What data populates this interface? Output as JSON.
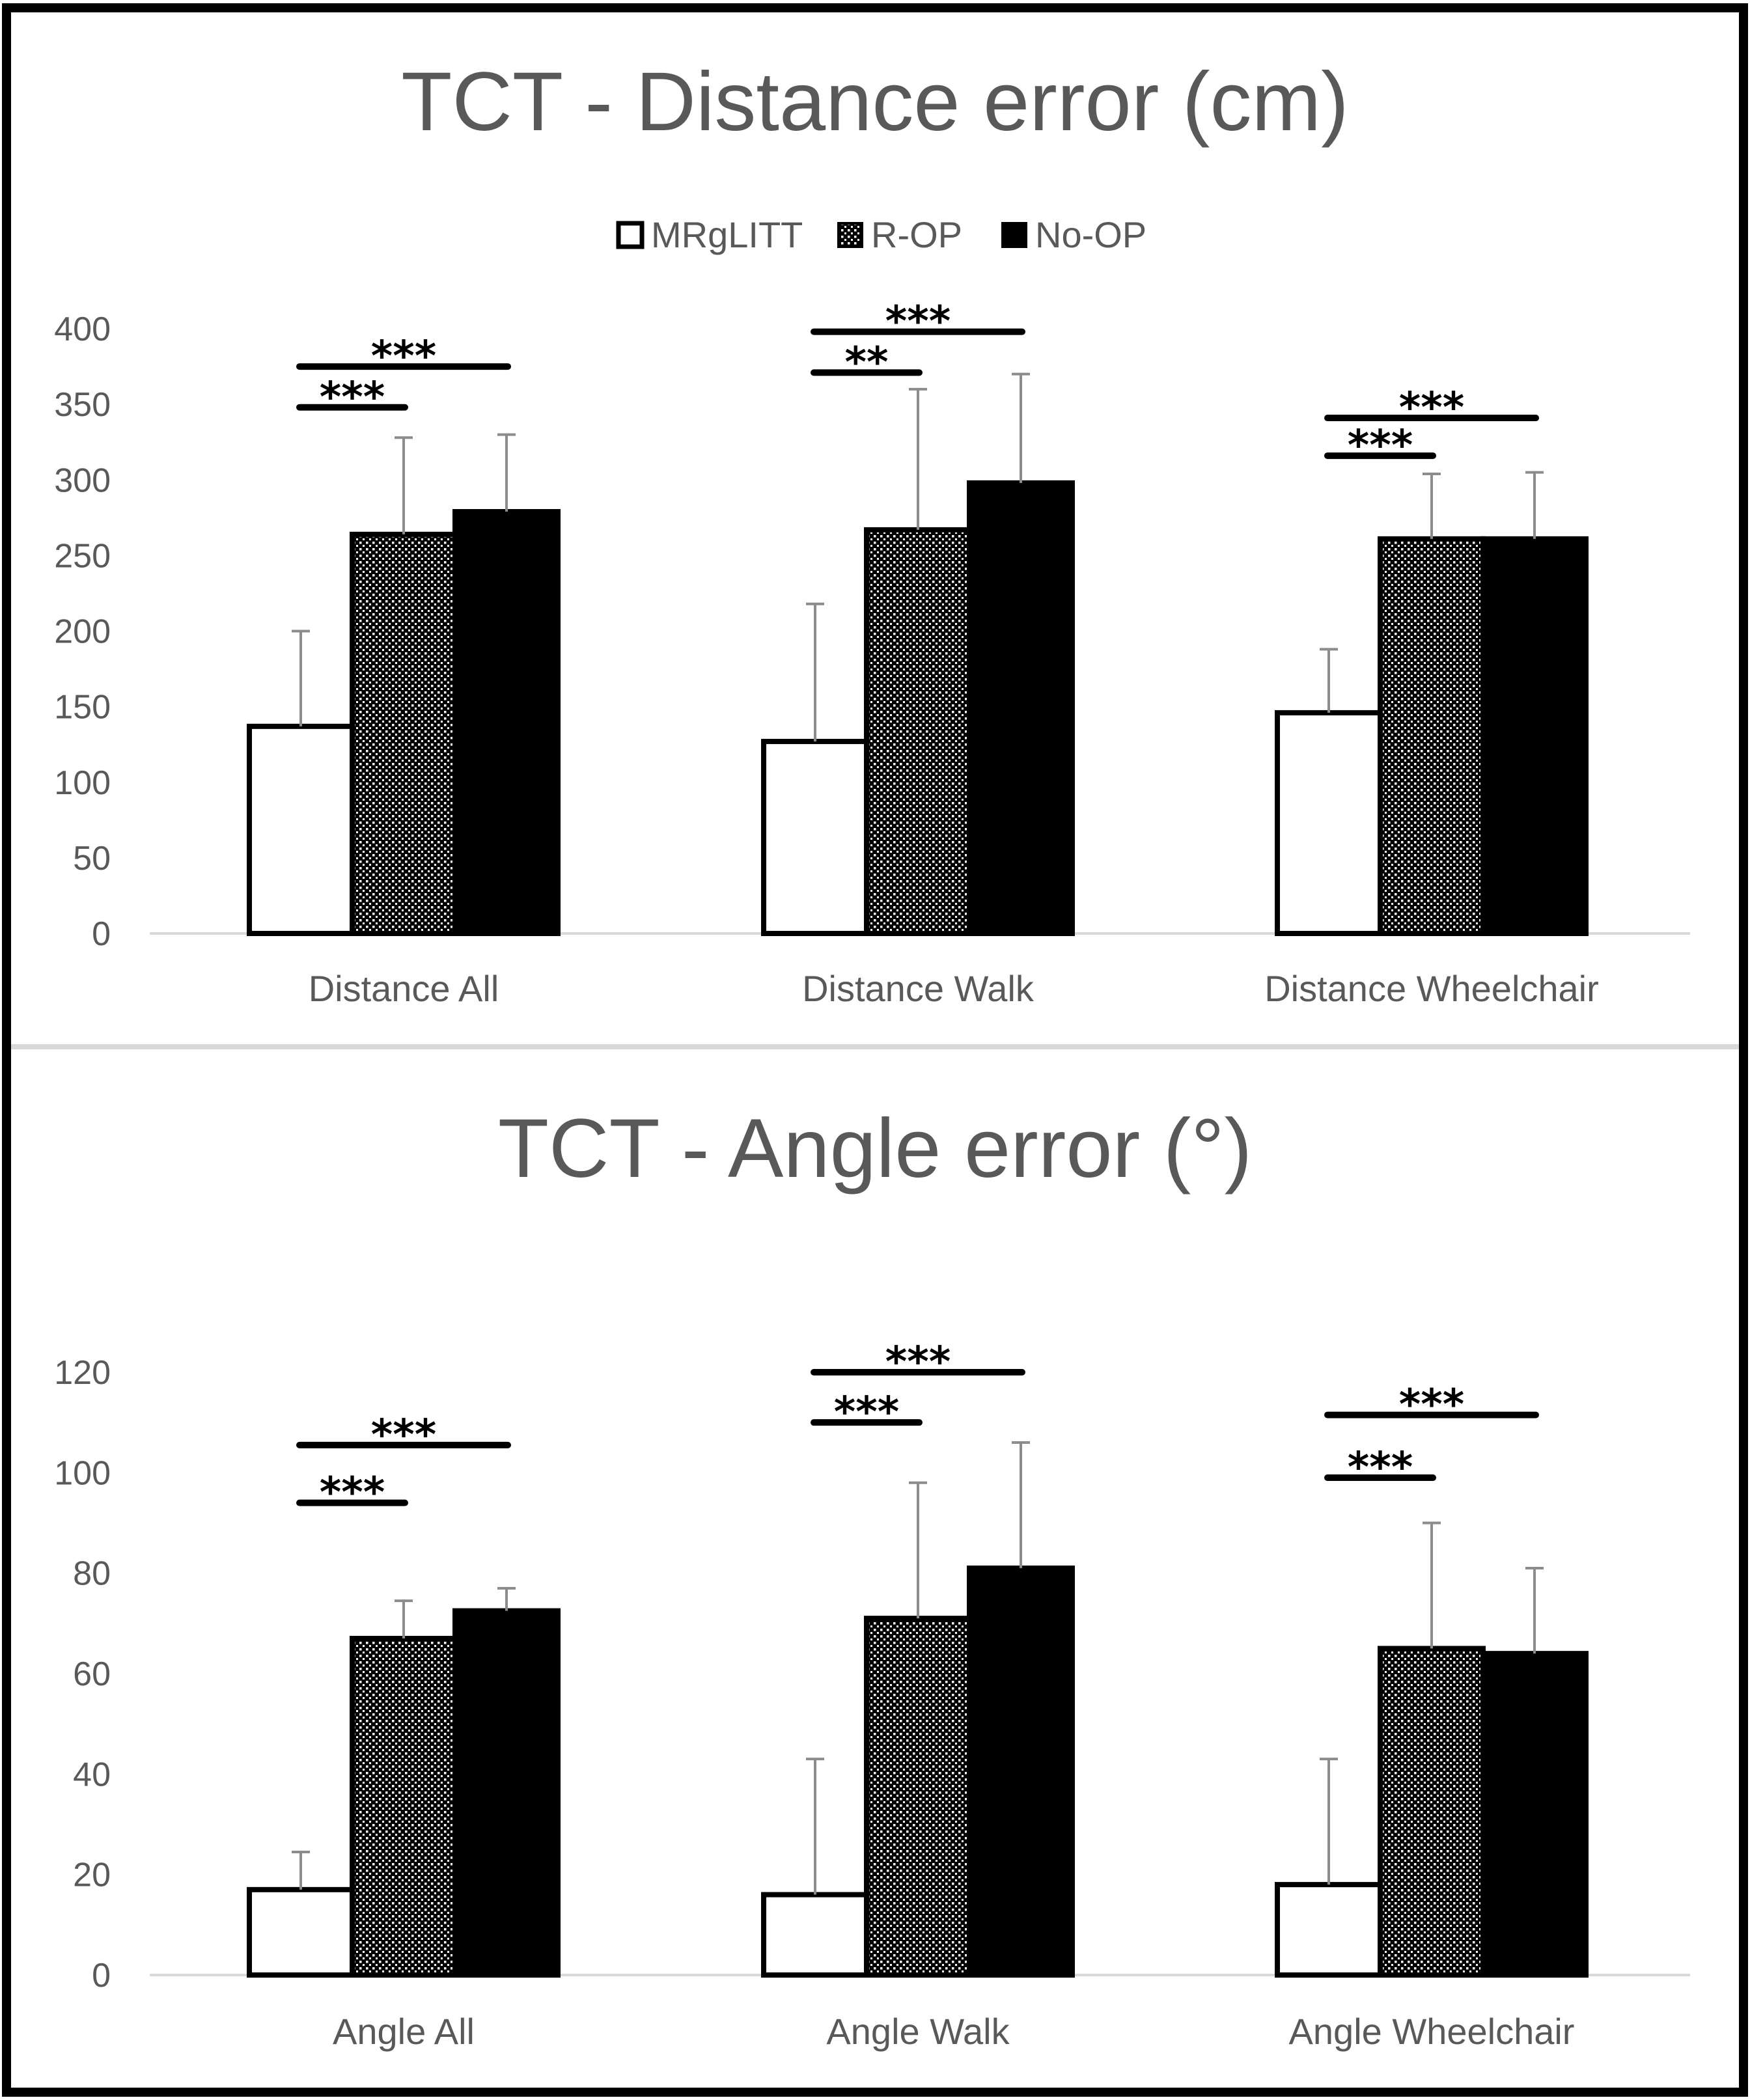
{
  "chart_data": [
    {
      "type": "bar",
      "title": "TCT - Distance error (cm)",
      "xlabel": "",
      "ylabel": "",
      "ylim": [
        0,
        400
      ],
      "yticks": [
        0,
        50,
        100,
        150,
        200,
        250,
        300,
        350,
        400
      ],
      "categories": [
        "Distance All",
        "Distance Walk",
        "Distance Wheelchair"
      ],
      "legend": {
        "position": "top-center",
        "entries": [
          {
            "name": "MRgLITT",
            "style": "white"
          },
          {
            "name": "R-OP",
            "style": "dotted"
          },
          {
            "name": "No-OP",
            "style": "black"
          }
        ]
      },
      "series": [
        {
          "name": "MRgLITT",
          "style": "white",
          "values": [
            137,
            127,
            146
          ],
          "errors": [
            63,
            91,
            42
          ]
        },
        {
          "name": "R-OP",
          "style": "dotted",
          "values": [
            264,
            267,
            261
          ],
          "errors": [
            64,
            93,
            43
          ]
        },
        {
          "name": "No-OP",
          "style": "black",
          "values": [
            279,
            298,
            261
          ],
          "errors": [
            51,
            72,
            44
          ]
        }
      ],
      "significance": [
        {
          "category": 0,
          "from": 0,
          "to": 1,
          "label": "***",
          "y": 348
        },
        {
          "category": 0,
          "from": 0,
          "to": 2,
          "label": "***",
          "y": 375
        },
        {
          "category": 1,
          "from": 0,
          "to": 1,
          "label": "**",
          "y": 371
        },
        {
          "category": 1,
          "from": 0,
          "to": 2,
          "label": "***",
          "y": 398
        },
        {
          "category": 2,
          "from": 0,
          "to": 1,
          "label": "***",
          "y": 316
        },
        {
          "category": 2,
          "from": 0,
          "to": 2,
          "label": "***",
          "y": 341
        }
      ]
    },
    {
      "type": "bar",
      "title": "TCT - Angle error (°)",
      "xlabel": "",
      "ylabel": "",
      "ylim": [
        0,
        120
      ],
      "yticks": [
        0,
        20,
        40,
        60,
        80,
        100,
        120
      ],
      "categories": [
        "Angle All",
        "Angle Walk",
        "Angle Wheelchair"
      ],
      "series": [
        {
          "name": "MRgLITT",
          "style": "white",
          "values": [
            17,
            16,
            18
          ],
          "errors": [
            7.5,
            27,
            25
          ]
        },
        {
          "name": "R-OP",
          "style": "dotted",
          "values": [
            67,
            71,
            65
          ],
          "errors": [
            7.5,
            27,
            25
          ]
        },
        {
          "name": "No-OP",
          "style": "black",
          "values": [
            72.5,
            81,
            64
          ],
          "errors": [
            4.5,
            25,
            17
          ]
        }
      ],
      "significance": [
        {
          "category": 0,
          "from": 0,
          "to": 1,
          "label": "***",
          "y": 94
        },
        {
          "category": 0,
          "from": 0,
          "to": 2,
          "label": "***",
          "y": 105.5
        },
        {
          "category": 1,
          "from": 0,
          "to": 1,
          "label": "***",
          "y": 110
        },
        {
          "category": 1,
          "from": 0,
          "to": 2,
          "label": "***",
          "y": 120
        },
        {
          "category": 2,
          "from": 0,
          "to": 1,
          "label": "***",
          "y": 99
        },
        {
          "category": 2,
          "from": 0,
          "to": 2,
          "label": "***",
          "y": 111.5
        }
      ]
    }
  ]
}
